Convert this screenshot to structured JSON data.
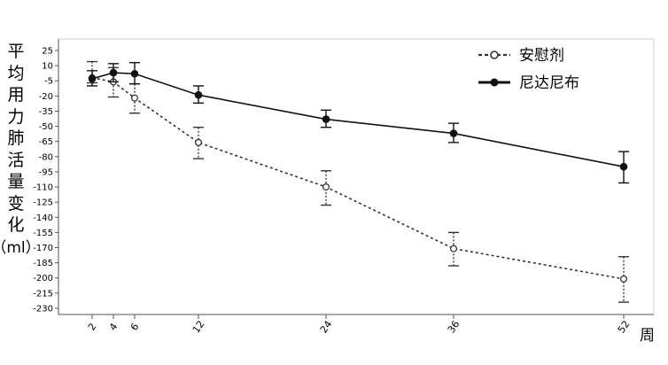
{
  "chart_data": {
    "type": "line",
    "ylabel": "平均用力肺活量变化",
    "ylabel_unit": "（ml）",
    "xlabel": "周",
    "x": [
      2,
      4,
      6,
      12,
      24,
      36,
      52
    ],
    "x_ticks": [
      "2",
      "4",
      "6",
      "12",
      "24",
      "36",
      "52"
    ],
    "y_ticks": [
      25,
      10,
      -5,
      -20,
      -35,
      -50,
      -65,
      -80,
      -95,
      -110,
      -125,
      -140,
      -155,
      -170,
      -185,
      -200,
      -215,
      -230
    ],
    "ylim": [
      -235,
      30
    ],
    "grid": false,
    "legend_position": "top-right",
    "series": [
      {
        "name": "安慰剂",
        "style": "dotted",
        "marker": "hollow",
        "color": "#333333",
        "values": [
          -2,
          -6,
          -22,
          -66,
          -110,
          -171,
          -201
        ],
        "err_low": [
          -7,
          -21,
          -37,
          -82,
          -128,
          -188,
          -224
        ],
        "err_high": [
          14,
          8,
          -8,
          -51,
          -94,
          -155,
          -179
        ]
      },
      {
        "name": "尼达尼布",
        "style": "solid",
        "marker": "filled",
        "color": "#111111",
        "values": [
          -3,
          3,
          2,
          -19,
          -43,
          -57,
          -90
        ],
        "err_low": [
          -10,
          -6,
          -8,
          -27,
          -51,
          -66,
          -106
        ],
        "err_high": [
          5,
          12,
          13,
          -10,
          -34,
          -47,
          -75
        ]
      }
    ]
  }
}
